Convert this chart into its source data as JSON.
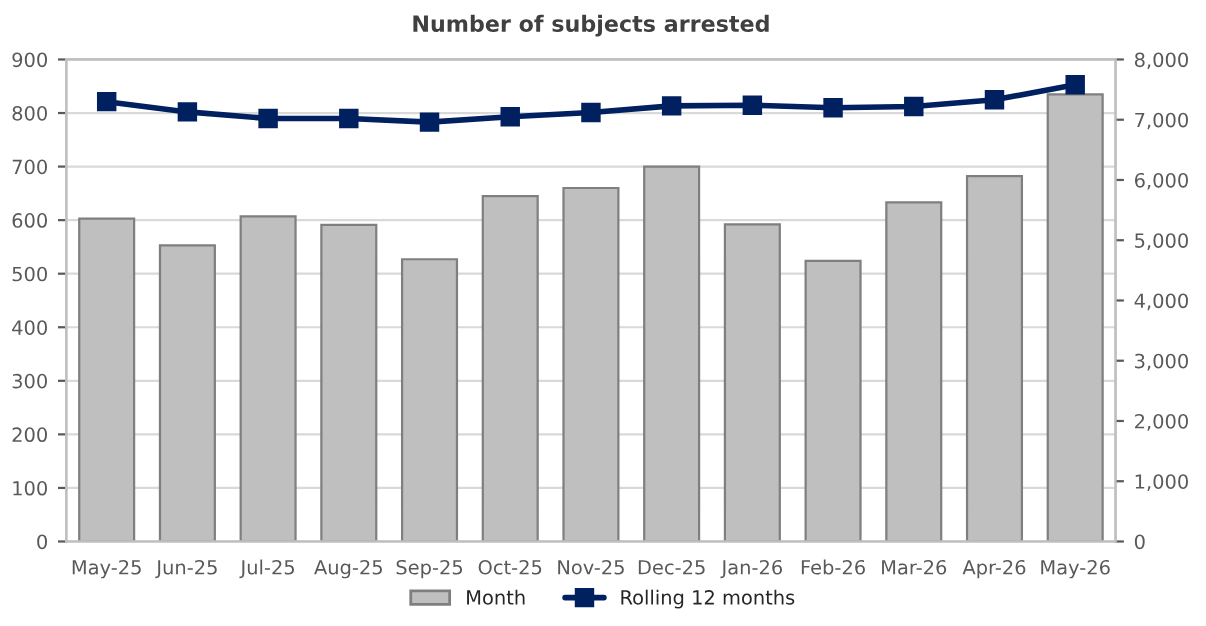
{
  "chart_data": {
    "type": "bar",
    "title": "Number of subjects arrested",
    "categories": [
      "May-25",
      "Jun-25",
      "Jul-25",
      "Aug-25",
      "Sep-25",
      "Oct-25",
      "Nov-25",
      "Dec-25",
      "Jan-26",
      "Feb-26",
      "Mar-26",
      "Apr-26",
      "May-26"
    ],
    "series": [
      {
        "name": "Month",
        "color": "#bfbfbf",
        "values": [
          603,
          553,
          607,
          591,
          527,
          645,
          660,
          700,
          592,
          524,
          633,
          682,
          835
        ]
      },
      {
        "name": "Rolling 12 months",
        "type": "line",
        "axis": "y2",
        "color": "#002060",
        "marker": "square",
        "values": [
          7300,
          7130,
          7020,
          7020,
          6960,
          7050,
          7120,
          7230,
          7240,
          7200,
          7220,
          7330,
          7580
        ]
      }
    ],
    "ylim": [
      0,
      900
    ],
    "yticks": [
      0,
      100,
      200,
      300,
      400,
      500,
      600,
      700,
      800,
      900
    ],
    "y2lim": [
      0,
      8000
    ],
    "y2ticks": [
      {
        "value": 0,
        "label": "0"
      },
      {
        "value": 1000,
        "label": "1,000"
      },
      {
        "value": 2000,
        "label": "2,000"
      },
      {
        "value": 3000,
        "label": "3,000"
      },
      {
        "value": 4000,
        "label": "4,000"
      },
      {
        "value": 5000,
        "label": "5,000"
      },
      {
        "value": 6000,
        "label": "6,000"
      },
      {
        "value": 7000,
        "label": "7,000"
      },
      {
        "value": 8000,
        "label": "8,000"
      }
    ],
    "grid": "y",
    "legend": "bottom"
  }
}
